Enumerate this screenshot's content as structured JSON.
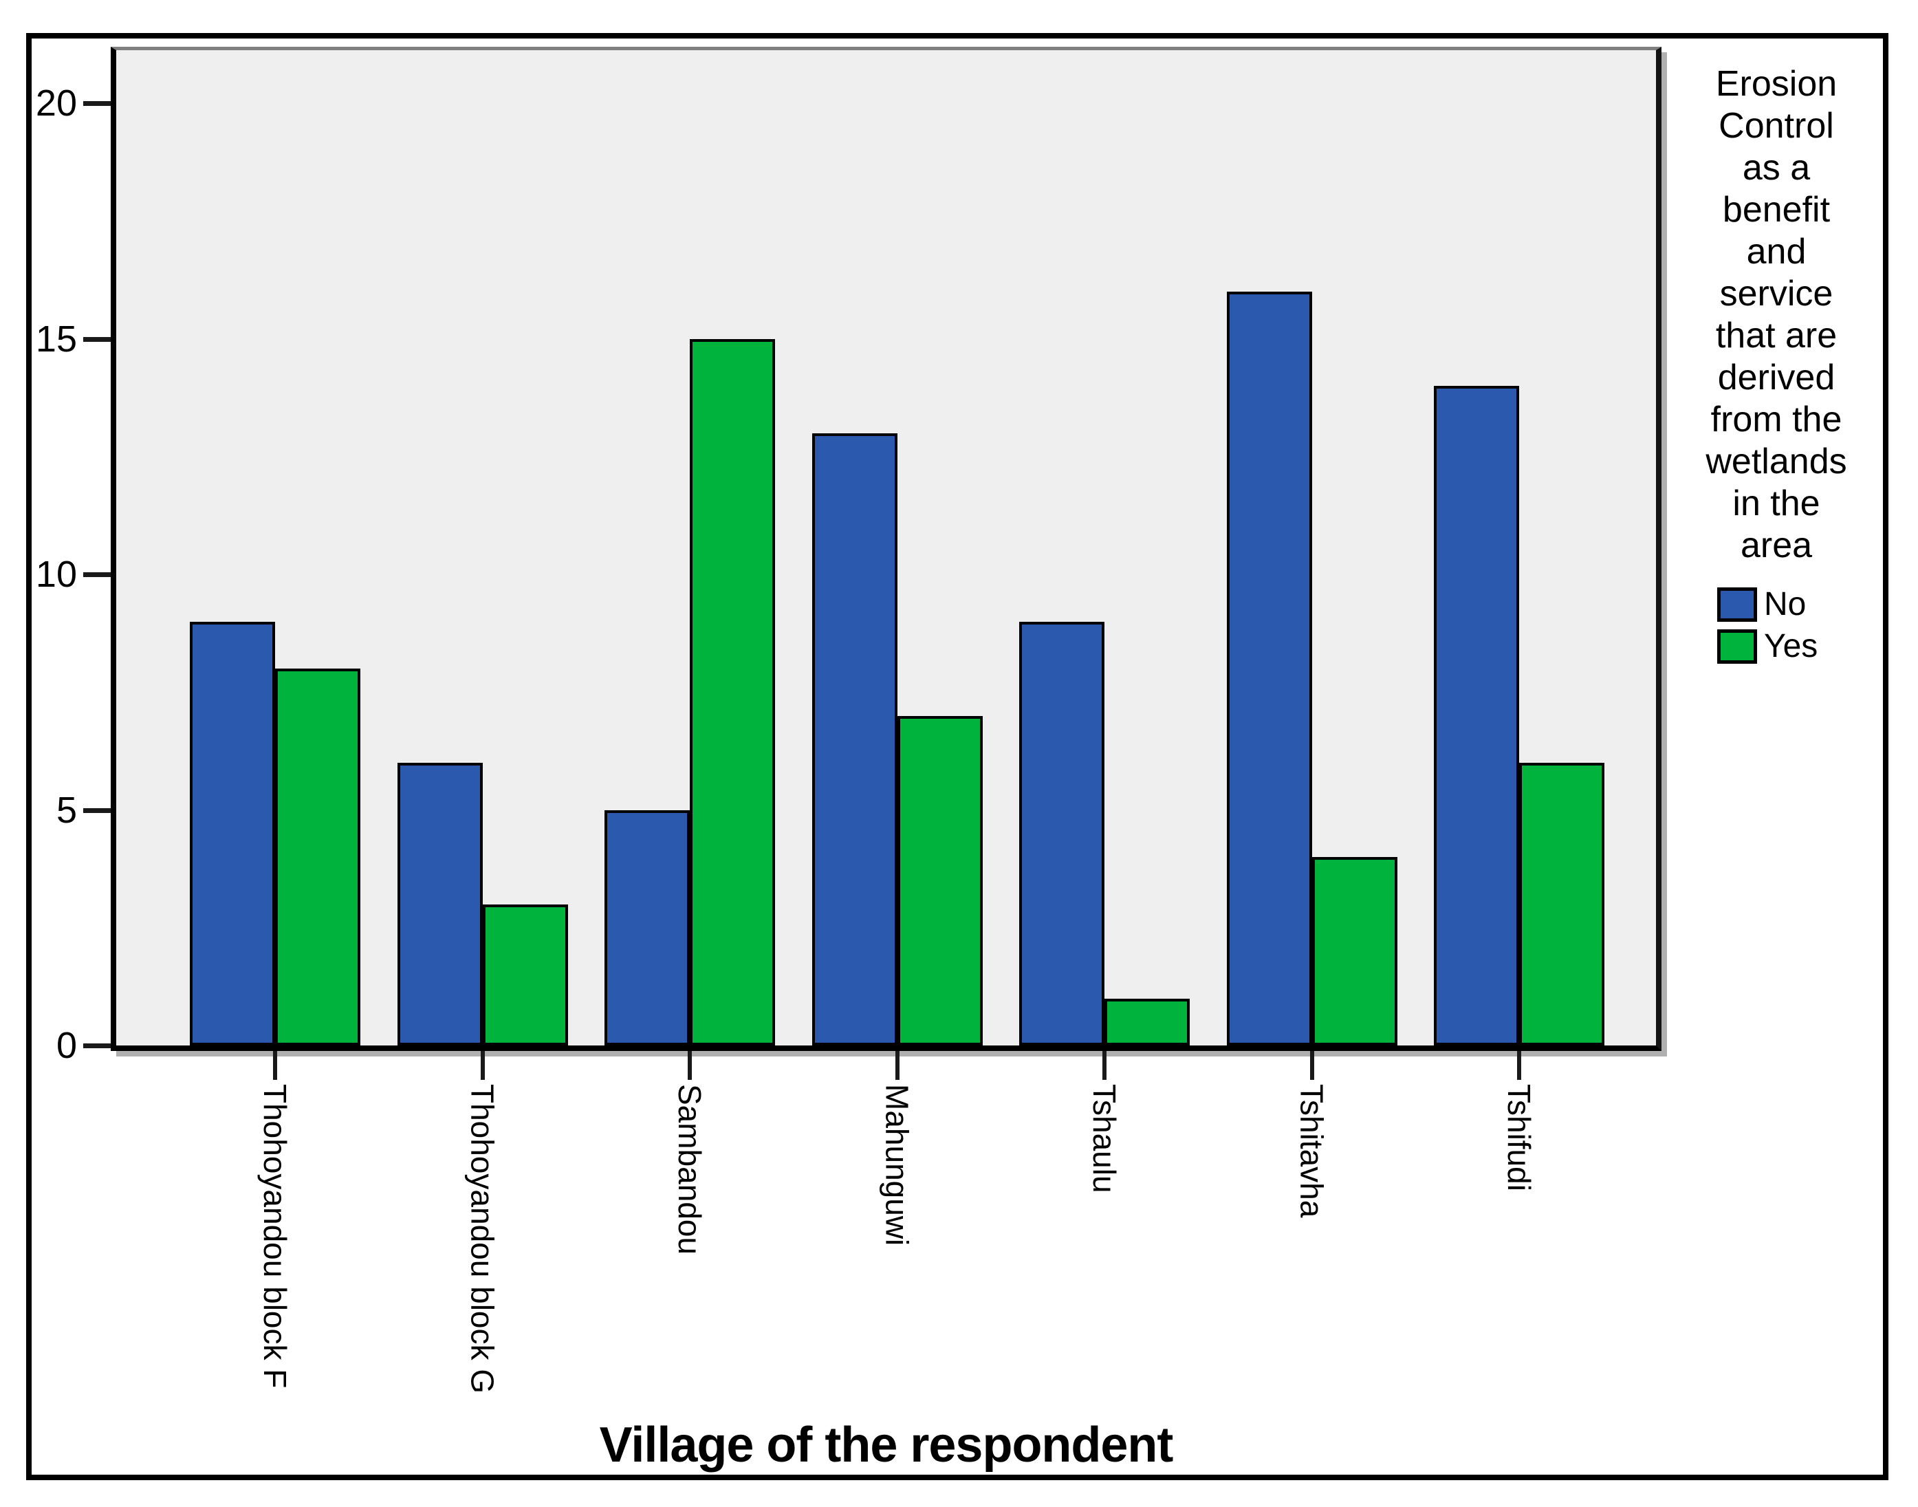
{
  "figure": {
    "background_color": "#ffffff",
    "plot_background_color": "#efefef",
    "frame_color": "#000000"
  },
  "axes": {
    "x_title": "Village of the respondent",
    "y_tick_labels": [
      "0",
      "5",
      "10",
      "15",
      "20"
    ]
  },
  "legend": {
    "title_lines": [
      "Erosion",
      "Control",
      "as a",
      "benefit",
      "and",
      "service",
      "that are",
      "derived",
      "from the",
      "wetlands",
      "in the",
      "area"
    ],
    "entries": [
      {
        "label": "No",
        "color": "#2b59ae"
      },
      {
        "label": "Yes",
        "color": "#00b33d"
      }
    ]
  },
  "chart_data": {
    "type": "bar",
    "title": "Erosion Control as a benefit and service that are derived from the wetlands in the area",
    "categories": [
      "Thohoyandou block F",
      "Thohoyandou block G",
      "Sambandou",
      "Mahunguwi",
      "Tshaulu",
      "Tshitavha",
      "Tshifudi"
    ],
    "series": [
      {
        "name": "No",
        "color": "#2b59ae",
        "values": [
          9,
          6,
          5,
          13,
          9,
          16,
          14
        ]
      },
      {
        "name": "Yes",
        "color": "#00b33d",
        "values": [
          8,
          3,
          15,
          7,
          1,
          4,
          6
        ]
      }
    ],
    "xlabel": "Village of the respondent",
    "ylabel": "",
    "ylim": [
      0,
      21
    ],
    "y_ticks": [
      0,
      5,
      10,
      15,
      20
    ],
    "grid": false,
    "legend_position": "right"
  }
}
